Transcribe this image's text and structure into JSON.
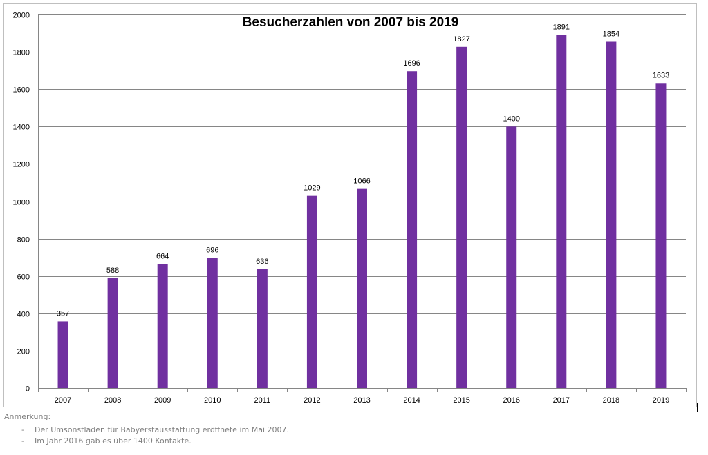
{
  "chart_data": {
    "type": "bar",
    "title": "Besucherzahlen von 2007 bis 2019",
    "xlabel": "",
    "ylabel": "",
    "categories": [
      "2007",
      "2008",
      "2009",
      "2010",
      "2011",
      "2012",
      "2013",
      "2014",
      "2015",
      "2016",
      "2017",
      "2018",
      "2019"
    ],
    "values": [
      357,
      588,
      664,
      696,
      636,
      1029,
      1066,
      1696,
      1827,
      1400,
      1891,
      1854,
      1633
    ],
    "ylim": [
      0,
      2000
    ],
    "yticks": [
      0,
      200,
      400,
      600,
      800,
      1000,
      1200,
      1400,
      1600,
      1800,
      2000
    ],
    "data_labels": true,
    "grid": true,
    "legend": "none",
    "bar_color": "#7030a0"
  },
  "notes": {
    "heading": "Anmerkung:",
    "items": [
      {
        "bullet": "-",
        "text": "Der Umsonstladen für Babyerstausstattung  eröffnete im Mai 2007."
      },
      {
        "bullet": "-",
        "text": "Im Jahr 2016 gab es über 1400 Kontakte."
      }
    ]
  }
}
